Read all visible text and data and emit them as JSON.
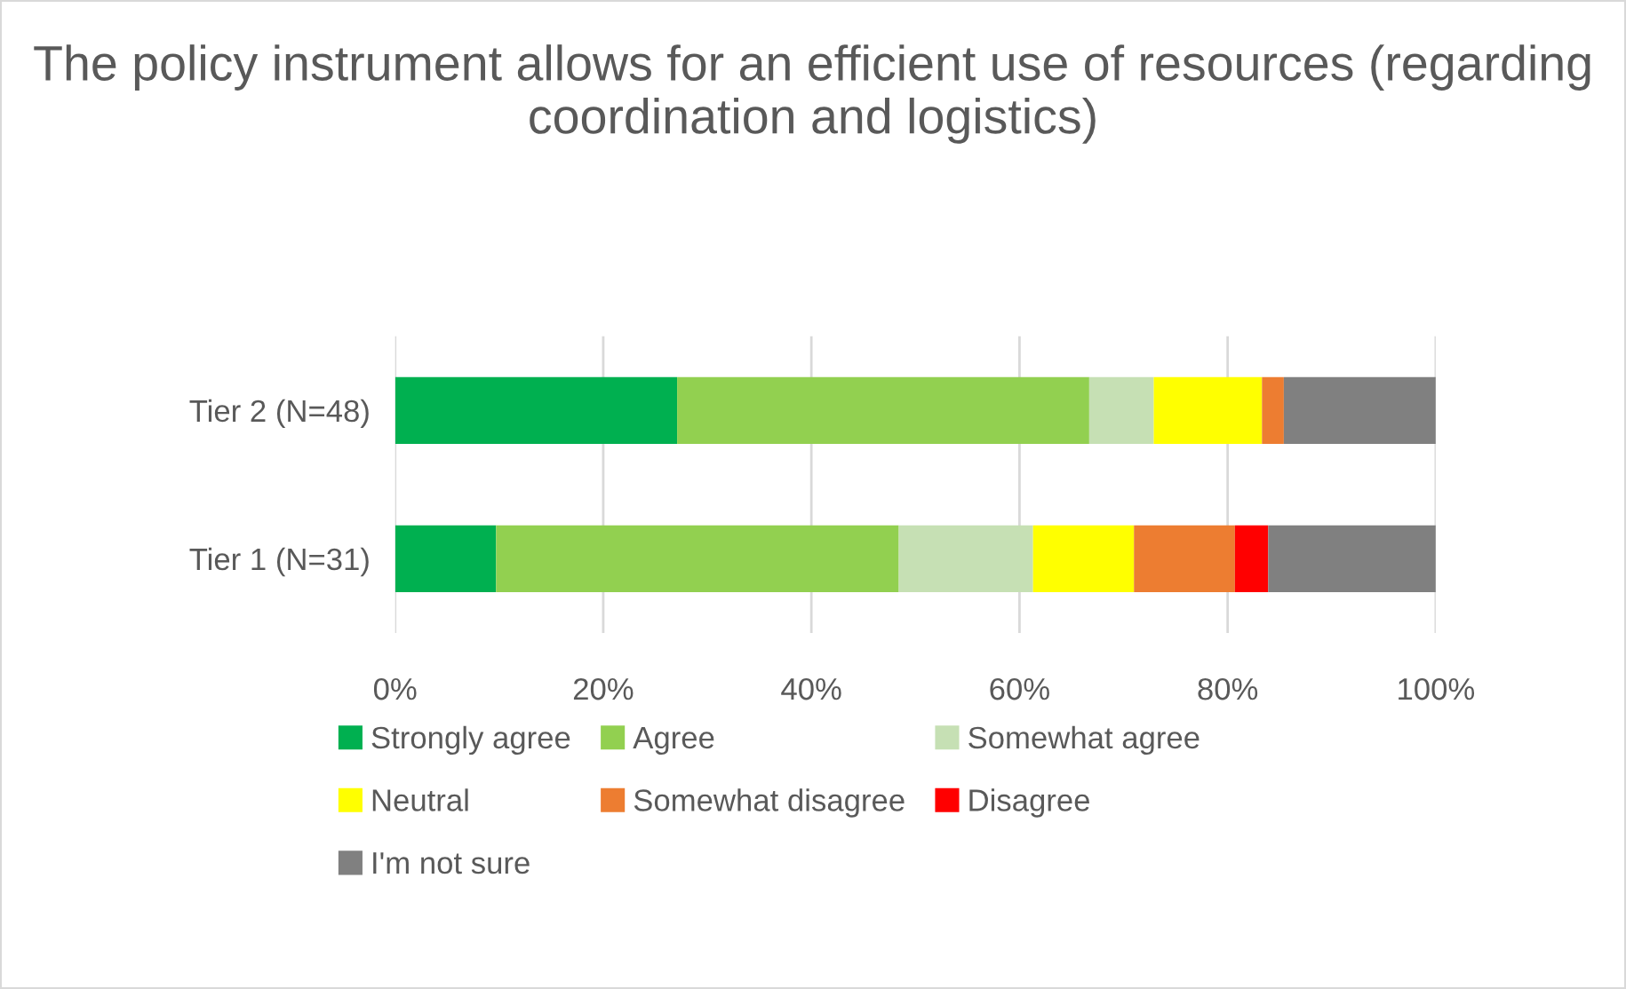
{
  "chart_data": {
    "type": "bar",
    "orientation": "horizontal",
    "stacked": true,
    "title": "The policy instrument allows for an efficient use of resources (regarding coordination and logistics)",
    "categories": [
      "Tier 2 (N=48)",
      "Tier 1 (N=31)"
    ],
    "series": [
      {
        "name": "Strongly agree",
        "color": "#00b050",
        "values": [
          27.1,
          9.7
        ]
      },
      {
        "name": "Agree",
        "color": "#92d050",
        "values": [
          39.6,
          38.7
        ]
      },
      {
        "name": "Somewhat agree",
        "color": "#c6e0b4",
        "values": [
          6.2,
          12.9
        ]
      },
      {
        "name": "Neutral",
        "color": "#ffff00",
        "values": [
          10.4,
          9.7
        ]
      },
      {
        "name": "Somewhat disagree",
        "color": "#ed7d31",
        "values": [
          2.1,
          9.7
        ]
      },
      {
        "name": "Disagree",
        "color": "#ff0000",
        "values": [
          0,
          3.2
        ]
      },
      {
        "name": "I'm not sure",
        "color": "#808080",
        "values": [
          14.6,
          16.1
        ]
      }
    ],
    "xlim": [
      0,
      100
    ],
    "xticks": [
      {
        "value": 0,
        "label": "0%"
      },
      {
        "value": 20,
        "label": "20%"
      },
      {
        "value": 40,
        "label": "40%"
      },
      {
        "value": 60,
        "label": "60%"
      },
      {
        "value": 80,
        "label": "80%"
      },
      {
        "value": 100,
        "label": "100%"
      }
    ],
    "grid": "x",
    "legend": "bottom"
  }
}
